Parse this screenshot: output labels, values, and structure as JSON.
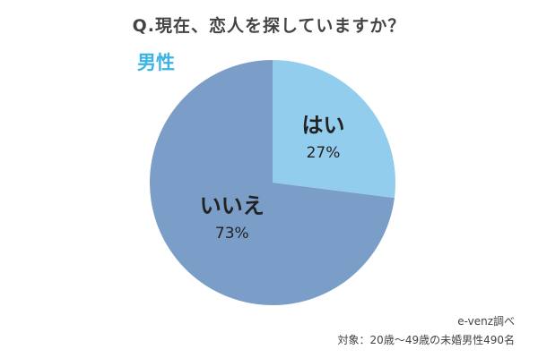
{
  "chart_data": {
    "type": "pie",
    "title": "Q.現在、恋人を探していますか？",
    "subtitle": "男性",
    "slices": [
      {
        "label": "はい",
        "value": 27,
        "display": "27%",
        "color": "#93cdee"
      },
      {
        "label": "いいえ",
        "value": 73,
        "display": "73%",
        "color": "#7b9ec9"
      }
    ],
    "legend": "none"
  },
  "footer": {
    "source": "e-venz調べ",
    "target": "対象：20歳〜49歳の未婚男性490名"
  },
  "colors": {
    "subtitle": "#3bb3e3",
    "text": "#444444"
  }
}
